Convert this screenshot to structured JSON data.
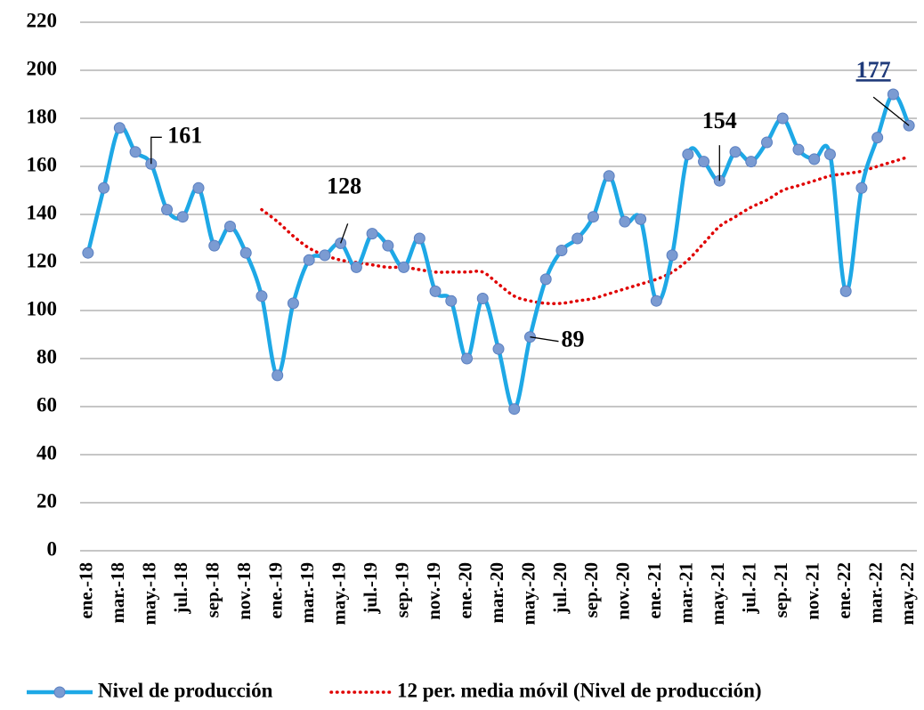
{
  "chart_data": {
    "type": "line",
    "categories": [
      "ene.-18",
      null,
      "mar.-18",
      null,
      "may.-18",
      null,
      "jul.-18",
      null,
      "sep.-18",
      null,
      "nov.-18",
      null,
      "ene.-19",
      null,
      "mar.-19",
      null,
      "may.-19",
      null,
      "jul.-19",
      null,
      "sep.-19",
      null,
      "nov.-19",
      null,
      "ene.-20",
      null,
      "mar.-20",
      null,
      "may.-20",
      null,
      "jul.-20",
      null,
      "sep.-20",
      null,
      "nov.-20",
      null,
      "ene.-21",
      null,
      "mar.-21",
      null,
      "may.-21",
      null,
      "jul.-21",
      null,
      "sep.-21",
      null,
      "nov.-21",
      null,
      "ene.-22",
      null,
      "mar.-22",
      null,
      "may.-22"
    ],
    "series": [
      {
        "name": "Nivel de producción",
        "color": "#1ea8e6",
        "marker_color": "#7b9bd2",
        "values": [
          124,
          151,
          176,
          166,
          161,
          142,
          139,
          151,
          127,
          135,
          124,
          106,
          73,
          103,
          121,
          123,
          128,
          118,
          132,
          127,
          118,
          130,
          108,
          104,
          80,
          105,
          84,
          59,
          89,
          113,
          125,
          130,
          139,
          156,
          137,
          138,
          104,
          123,
          165,
          162,
          154,
          166,
          162,
          170,
          180,
          167,
          163,
          165,
          108,
          151,
          172,
          190,
          177
        ],
        "value_labels": [
          null,
          null,
          null,
          null,
          "161",
          null,
          null,
          null,
          null,
          null,
          null,
          null,
          null,
          null,
          null,
          null,
          "128",
          null,
          null,
          null,
          null,
          null,
          null,
          null,
          null,
          null,
          null,
          null,
          "89",
          null,
          null,
          null,
          null,
          null,
          null,
          null,
          null,
          null,
          null,
          null,
          "154",
          null,
          null,
          null,
          null,
          null,
          null,
          null,
          null,
          null,
          null,
          null,
          "177"
        ]
      },
      {
        "name": "12 per. media móvil (Nivel de producción)",
        "color": "#e00000",
        "dashed": true,
        "values": [
          null,
          null,
          null,
          null,
          null,
          null,
          null,
          null,
          null,
          null,
          null,
          142,
          137,
          131,
          126,
          123,
          121,
          120,
          119,
          118,
          118,
          117,
          116,
          116,
          116,
          116,
          111,
          106,
          104,
          103,
          103,
          104,
          105,
          107,
          109,
          111,
          113,
          116,
          121,
          128,
          135,
          139,
          143,
          146,
          150,
          152,
          154,
          156,
          157,
          158,
          160,
          162,
          164
        ]
      }
    ],
    "ylim": [
      0,
      220
    ],
    "yticks": [
      0,
      20,
      40,
      60,
      80,
      100,
      120,
      140,
      160,
      180,
      200,
      220
    ],
    "grid": true,
    "legend": "bottom"
  }
}
